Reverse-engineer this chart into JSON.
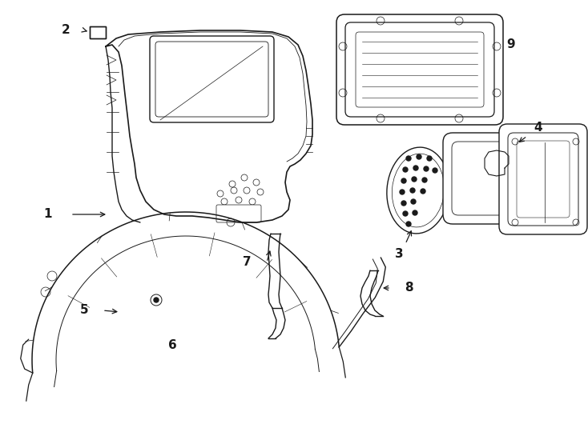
{
  "background_color": "#ffffff",
  "line_color": "#1a1a1a",
  "line_width": 1.0,
  "fig_width": 7.34,
  "fig_height": 5.4
}
